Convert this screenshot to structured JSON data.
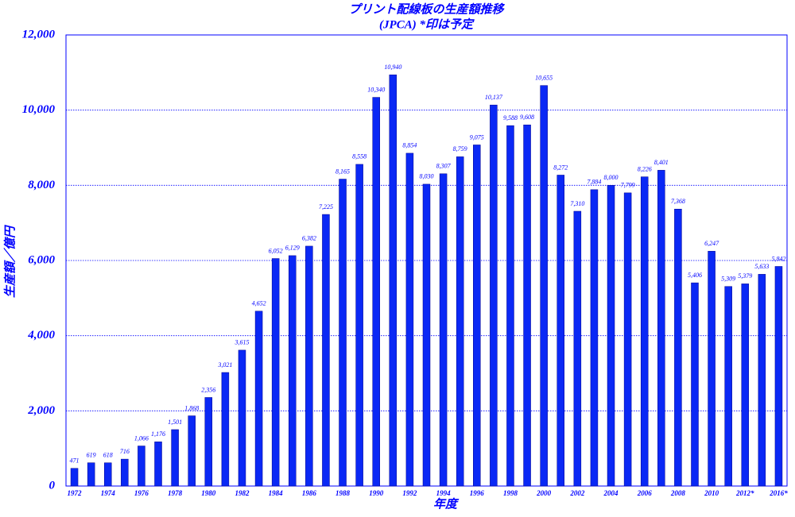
{
  "chart_data": {
    "type": "bar",
    "title": "プリント配線板の生産額推移",
    "subtitle": "(JPCA)  *印は予定",
    "x_label": "年度",
    "y_label": "生産額／億円",
    "categories": [
      "1972",
      null,
      "1974",
      null,
      "1976",
      null,
      "1978",
      null,
      "1980",
      null,
      "1982",
      null,
      "1984",
      null,
      "1986",
      null,
      "1988",
      null,
      "1990",
      null,
      "1992",
      null,
      "1994",
      null,
      "1996",
      null,
      "1998",
      null,
      "2000",
      null,
      "2002",
      null,
      "2004",
      null,
      "2006",
      null,
      "2008",
      null,
      "2010",
      null,
      "2012*",
      null,
      "2016*"
    ],
    "values": [
      471,
      619,
      618,
      716,
      1066,
      1176,
      1501,
      1868,
      2356,
      3021,
      3615,
      4652,
      6052,
      6129,
      6382,
      7225,
      8165,
      8558,
      10340,
      10940,
      8854,
      8030,
      8307,
      8759,
      9075,
      10137,
      9588,
      9608,
      10655,
      8272,
      7310,
      7884,
      8000,
      7799,
      8226,
      8401,
      7368,
      5406,
      6247,
      5309,
      5379,
      5633,
      5842
    ],
    "value_labels": [
      "471",
      "619",
      "618",
      "716",
      "1,066",
      "1,176",
      "1,501",
      "1,868",
      "2,356",
      "3,021",
      "3,615",
      "4,652",
      "6,052",
      "6,129",
      "6,382",
      "7,225",
      "8,165",
      "8,558",
      "10,340",
      "10,940",
      "8,854",
      "8,030",
      "8,307",
      "8,759",
      "9,075",
      "10,137",
      "9,588",
      "9,608",
      "10,655",
      "8,272",
      "7,310",
      "7,884",
      "8,000",
      "7,799",
      "8,226",
      "8,401",
      "7,368",
      "5,406",
      "6,247",
      "5,309",
      "5,379",
      "5,633",
      "5,842"
    ],
    "color": "#0a28f5",
    "ylim": [
      0,
      12000
    ],
    "yticks": [
      0,
      {
        "value": 2000,
        "label": "2,000"
      },
      {
        "value": 4000,
        "label": "4,000"
      },
      {
        "value": 6000,
        "label": "6,000"
      },
      {
        "value": 8000,
        "label": "8,000"
      },
      {
        "value": 10000,
        "label": "10,000"
      },
      {
        "value": 12000,
        "label": "12,000"
      }
    ],
    "grid": true
  }
}
